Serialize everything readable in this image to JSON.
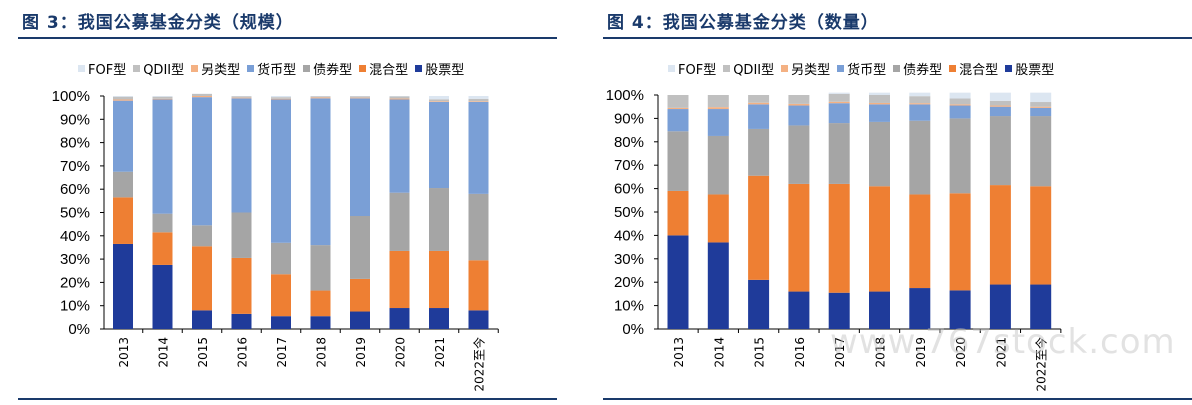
{
  "colors": {
    "FOF型": "#dce6f1",
    "QDII型": "#c0c0c0",
    "另类型": "#f4b183",
    "货币型": "#7a9fd6",
    "债券型": "#a5a5a5",
    "混合型": "#ee7f33",
    "股票型": "#1f3b9a",
    "title": "#1a3a6b"
  },
  "watermark": "www.767stock.com",
  "chart_data": [
    {
      "type": "bar",
      "stacked": true,
      "title": "图 3：我国公募基金分类（规模）",
      "categories": [
        "2013",
        "2014",
        "2015",
        "2016",
        "2017",
        "2018",
        "2019",
        "2020",
        "2021",
        "2022至今"
      ],
      "y_ticks": [
        "0%",
        "10%",
        "20%",
        "30%",
        "40%",
        "50%",
        "60%",
        "70%",
        "80%",
        "90%",
        "100%"
      ],
      "ylim": [
        0,
        100
      ],
      "legend": [
        "FOF型",
        "QDII型",
        "另类型",
        "货币型",
        "债券型",
        "混合型",
        "股票型"
      ],
      "legend_position": "top",
      "grid": false,
      "series": [
        {
          "name": "股票型",
          "values": [
            36.5,
            27.5,
            8,
            6.5,
            5.5,
            5.5,
            7.5,
            9,
            9,
            8
          ]
        },
        {
          "name": "混合型",
          "values": [
            20,
            14,
            27.5,
            24,
            18,
            11,
            14,
            24.5,
            24.5,
            21.5
          ]
        },
        {
          "name": "债券型",
          "values": [
            11,
            8,
            9,
            19.5,
            13.5,
            19.5,
            27,
            25,
            27,
            28.5
          ]
        },
        {
          "name": "货币型",
          "values": [
            30.5,
            49,
            55,
            49,
            61.5,
            63,
            50.5,
            40,
            37,
            39.5
          ]
        },
        {
          "name": "另类型",
          "values": [
            0.5,
            0.3,
            0.5,
            0.3,
            0.3,
            0.4,
            0.3,
            0.4,
            0.3,
            0.3
          ]
        },
        {
          "name": "QDII型",
          "values": [
            1.2,
            0.9,
            0.9,
            0.6,
            0.7,
            0.5,
            0.6,
            0.9,
            0.8,
            1.0
          ]
        },
        {
          "name": "FOF型",
          "values": [
            0.3,
            0.3,
            0.1,
            0.1,
            0.5,
            0.1,
            0.1,
            0.2,
            1.4,
            1.2
          ]
        }
      ]
    },
    {
      "type": "bar",
      "stacked": true,
      "title": "图 4：我国公募基金分类（数量）",
      "categories": [
        "2013",
        "2014",
        "2015",
        "2016",
        "2017",
        "2018",
        "2019",
        "2020",
        "2021",
        "2022至今"
      ],
      "y_ticks": [
        "0%",
        "10%",
        "20%",
        "30%",
        "40%",
        "50%",
        "60%",
        "70%",
        "80%",
        "90%",
        "100%"
      ],
      "ylim": [
        0,
        100
      ],
      "legend": [
        "FOF型",
        "QDII型",
        "另类型",
        "货币型",
        "债券型",
        "混合型",
        "股票型"
      ],
      "legend_position": "top",
      "grid": false,
      "series": [
        {
          "name": "股票型",
          "values": [
            40,
            37,
            21,
            16,
            15.5,
            16,
            17.5,
            16.5,
            19,
            19
          ]
        },
        {
          "name": "混合型",
          "values": [
            19,
            20.5,
            44.5,
            46,
            46.5,
            45,
            40,
            41.5,
            42.5,
            42
          ]
        },
        {
          "name": "债券型",
          "values": [
            25.5,
            25,
            20,
            25,
            26,
            27.5,
            31.5,
            32,
            29.5,
            30
          ]
        },
        {
          "name": "货币型",
          "values": [
            9.5,
            11.5,
            10.5,
            8.5,
            8.5,
            7.5,
            7,
            5.5,
            4,
            3.5
          ]
        },
        {
          "name": "另类型",
          "values": [
            0.5,
            0.8,
            0.7,
            0.7,
            0.6,
            0.6,
            0.5,
            0.5,
            0.5,
            0.5
          ]
        },
        {
          "name": "QDII型",
          "values": [
            5.5,
            5.2,
            3.3,
            3.8,
            3.4,
            3.4,
            3,
            2.5,
            2,
            2
          ]
        },
        {
          "name": "FOF型",
          "values": [
            0,
            0,
            0,
            0,
            0.5,
            1,
            1.5,
            2.5,
            3.5,
            4
          ]
        }
      ]
    }
  ]
}
